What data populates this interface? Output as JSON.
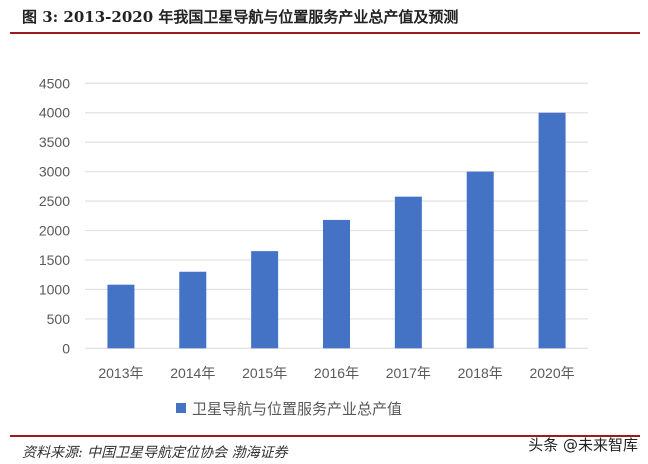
{
  "title": "图 3: 2013-2020 年我国卫星导航与位置服务产业总产值及预测",
  "source": "资料来源: 中国卫星导航定位协会 渤海证券",
  "watermark": "头条 @未来智库",
  "chart_data": {
    "type": "bar",
    "categories": [
      "2013年",
      "2014年",
      "2015年",
      "2016年",
      "2017年",
      "2018年",
      "2020年"
    ],
    "series": [
      {
        "name": "卫星导航与位置服务产业总产值",
        "values": [
          1080,
          1300,
          1650,
          2180,
          2575,
          3000,
          4000
        ],
        "color": "#4472c4"
      }
    ],
    "yticks": [
      0,
      500,
      1000,
      1500,
      2000,
      2500,
      3000,
      3500,
      4000,
      4500
    ],
    "ylim": [
      0,
      4500
    ],
    "grid": true,
    "legend": "bottom"
  }
}
